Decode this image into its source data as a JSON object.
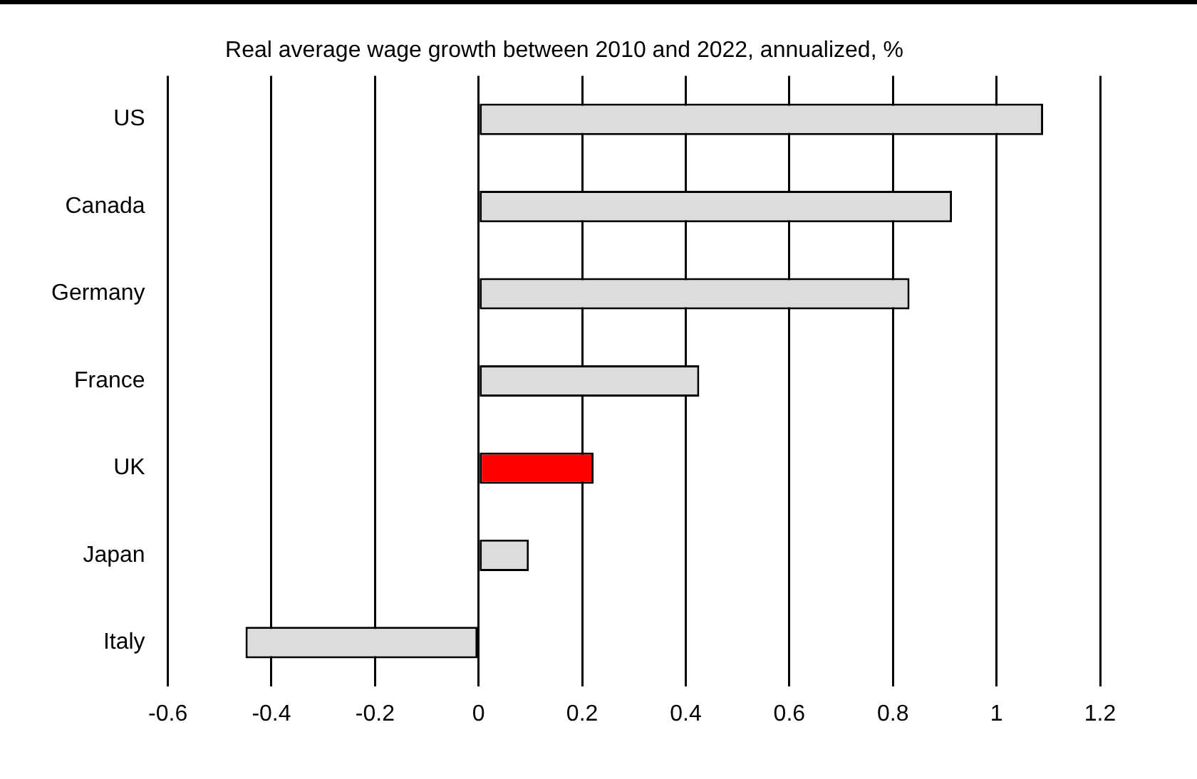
{
  "chart_data": {
    "type": "bar",
    "orientation": "horizontal",
    "title": "Real average wage growth between 2010 and 2022, annualized, %",
    "categories": [
      "US",
      "Canada",
      "Germany",
      "France",
      "UK",
      "Japan",
      "Italy"
    ],
    "values": [
      1.09,
      0.914,
      0.832,
      0.426,
      0.222,
      0.097,
      -0.45
    ],
    "colors": [
      "#dcdcdc",
      "#dcdcdc",
      "#dcdcdc",
      "#dcdcdc",
      "#ff0000",
      "#dcdcdc",
      "#dcdcdc"
    ],
    "xlim": [
      -0.6,
      1.2
    ],
    "xticks": [
      -0.6,
      -0.4,
      -0.2,
      0,
      0.2,
      0.4,
      0.6,
      0.8,
      1,
      1.2
    ],
    "grid": "x",
    "legend": false
  }
}
